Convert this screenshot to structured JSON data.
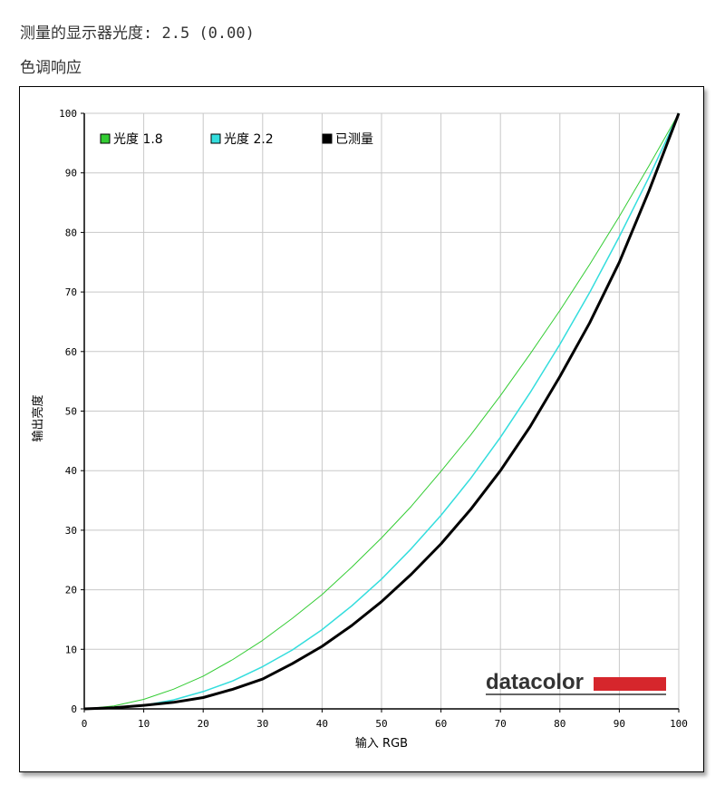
{
  "header": {
    "measured_gamma": "测量的显示器光度:  2.5 (0.00)",
    "section_title": "色调响应"
  },
  "brand": {
    "name": "datacolor",
    "accent_color": "#d6262c"
  },
  "chart_data": {
    "type": "line",
    "xlabel": "输入 RGB",
    "ylabel": "输出亮度",
    "xlim": [
      0,
      100
    ],
    "ylim": [
      0,
      100
    ],
    "x_ticks": [
      0,
      10,
      20,
      30,
      40,
      50,
      60,
      70,
      80,
      90,
      100
    ],
    "y_ticks": [
      0,
      10,
      20,
      30,
      40,
      50,
      60,
      70,
      80,
      90,
      100
    ],
    "grid": true,
    "legend_position": "top-left",
    "x": [
      0,
      5,
      10,
      15,
      20,
      25,
      30,
      35,
      40,
      45,
      50,
      55,
      60,
      65,
      70,
      75,
      80,
      85,
      90,
      95,
      100
    ],
    "series": [
      {
        "name": "光度 1.8",
        "color": "#33cc33",
        "width": 1,
        "values": [
          0,
          0.5,
          1.6,
          3.3,
          5.5,
          8.3,
          11.5,
          15.2,
          19.2,
          23.8,
          28.7,
          34.0,
          39.9,
          46.0,
          52.6,
          59.6,
          66.9,
          74.6,
          82.7,
          91.2,
          100
        ]
      },
      {
        "name": "光度 2.2",
        "color": "#33dddd",
        "width": 1.5,
        "values": [
          0,
          0.1,
          0.6,
          1.5,
          2.9,
          4.7,
          7.1,
          9.9,
          13.3,
          17.3,
          21.8,
          26.9,
          32.5,
          38.7,
          45.6,
          53.1,
          61.2,
          69.9,
          79.3,
          89.3,
          100
        ]
      },
      {
        "name": "已测量",
        "color": "#000000",
        "width": 3,
        "values": [
          0,
          0.2,
          0.6,
          1.1,
          1.9,
          3.3,
          5.0,
          7.6,
          10.5,
          14.0,
          18.0,
          22.6,
          27.7,
          33.5,
          40.0,
          47.4,
          55.8,
          64.8,
          75.0,
          87.0,
          100
        ]
      }
    ]
  }
}
